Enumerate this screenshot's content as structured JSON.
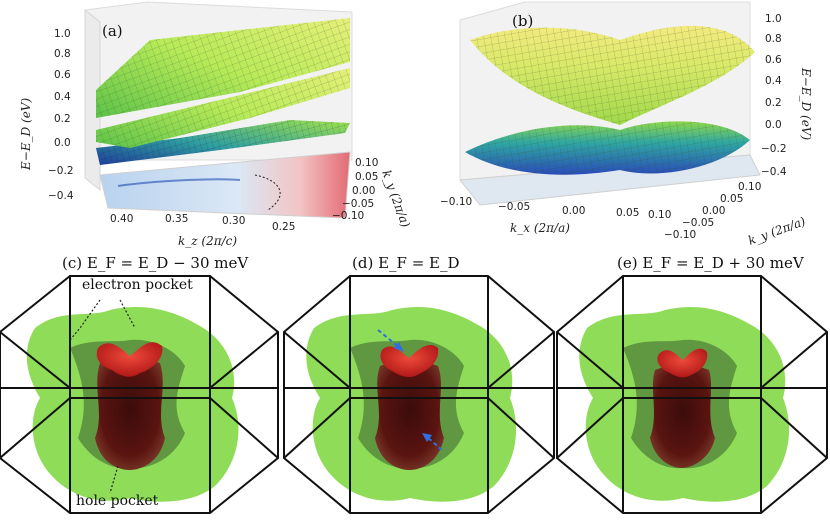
{
  "panel_a": {
    "label": "(a)",
    "z_axis_label": "E−E_D (eV)",
    "z_ticks": [
      "1.0",
      "0.8",
      "0.6",
      "0.4",
      "0.2",
      "0.0",
      "−0.2",
      "−0.4"
    ],
    "kz_axis_label": "k_z (2π/c)",
    "kz_ticks": [
      "0.40",
      "0.35",
      "0.30",
      "0.25"
    ],
    "ky_axis_label": "k_y (2π/a)",
    "ky_ticks": [
      "0.10",
      "0.05",
      "0.00",
      "−0.05",
      "−0.10"
    ]
  },
  "panel_b": {
    "label": "(b)",
    "z_axis_label": "E−E_D (eV)",
    "z_ticks": [
      "1.0",
      "0.8",
      "0.6",
      "0.4",
      "0.2",
      "0.0",
      "−0.2",
      "−0.4"
    ],
    "kx_axis_label": "k_x (2π/a)",
    "kx_ticks": [
      "−0.10",
      "−0.05",
      "0.00",
      "0.05",
      "0.10"
    ],
    "ky_axis_label": "k_y (2π/a)",
    "ky_ticks": [
      "0.10",
      "0.05",
      "0.00",
      "−0.05",
      "−0.10"
    ]
  },
  "panel_c": {
    "title": "(c) E_F = E_D − 30 meV",
    "electron_pocket": "electron pocket",
    "hole_pocket": "hole pocket"
  },
  "panel_d": {
    "title": "(d) E_F = E_D"
  },
  "panel_e": {
    "title": "(e) E_F = E_D + 30 meV"
  },
  "colors": {
    "upper_band": "#9fe24a",
    "lower_band": "#2f6fc9",
    "electron_pocket": "#6bd630",
    "hole_pocket": "#cc1f1f",
    "arrow": "#2f6fe0"
  }
}
